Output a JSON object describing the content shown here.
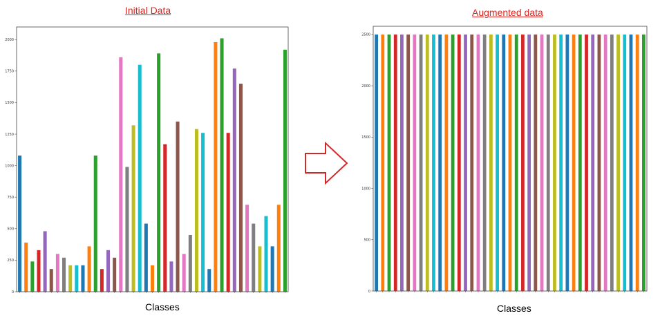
{
  "panels": {
    "left_title": "Initial Data",
    "right_title": "Augmented data",
    "left_xlabel": "Classes",
    "right_xlabel": "Classes"
  },
  "arrow_color": "#d62728",
  "chart_data": [
    {
      "type": "bar",
      "title": "Initial Data",
      "xlabel": "Classes",
      "ylabel": "",
      "ylim": [
        0,
        2100
      ],
      "yticks": [
        0,
        250,
        500,
        750,
        1000,
        1250,
        1500,
        1750,
        2000
      ],
      "values": [
        1080,
        390,
        240,
        330,
        480,
        180,
        300,
        270,
        210,
        210,
        210,
        360,
        1080,
        180,
        330,
        270,
        1860,
        990,
        1320,
        1800,
        540,
        210,
        1890,
        1170,
        240,
        1350,
        300,
        450,
        1290,
        1260,
        180,
        1980,
        2010,
        1260,
        1770,
        1650,
        690,
        540,
        360,
        600,
        360,
        690,
        1920
      ],
      "colors": [
        "#1f77b4",
        "#ff7f0e",
        "#2ca02c",
        "#d62728",
        "#9467bd",
        "#8c564b",
        "#e377c2",
        "#7f7f7f",
        "#bcbd22",
        "#17becf"
      ],
      "grid": false
    },
    {
      "type": "bar",
      "title": "Augmented data",
      "xlabel": "Classes",
      "ylabel": "",
      "ylim": [
        0,
        2580
      ],
      "yticks": [
        0,
        500,
        1000,
        1500,
        2000,
        2500
      ],
      "values": [
        2500,
        2500,
        2500,
        2500,
        2500,
        2500,
        2500,
        2500,
        2500,
        2500,
        2500,
        2500,
        2500,
        2500,
        2500,
        2500,
        2500,
        2500,
        2500,
        2500,
        2500,
        2500,
        2500,
        2500,
        2500,
        2500,
        2500,
        2500,
        2500,
        2500,
        2500,
        2500,
        2500,
        2500,
        2500,
        2500,
        2500,
        2500,
        2500,
        2500,
        2500,
        2500,
        2500
      ],
      "colors": [
        "#1f77b4",
        "#ff7f0e",
        "#2ca02c",
        "#d62728",
        "#9467bd",
        "#8c564b",
        "#e377c2",
        "#7f7f7f",
        "#bcbd22",
        "#17becf"
      ],
      "grid": false
    }
  ]
}
